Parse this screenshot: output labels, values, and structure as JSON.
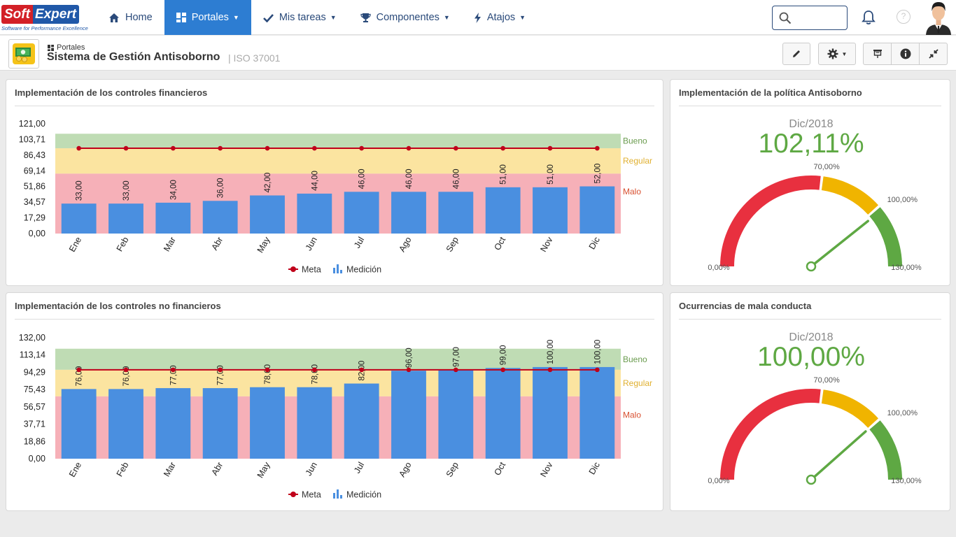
{
  "brand": {
    "part1": "Soft",
    "part2": "Expert",
    "tagline": "Software for Performance Excellence"
  },
  "nav": {
    "home": "Home",
    "portales": "Portales",
    "tareas": "Mis tareas",
    "componentes": "Componentes",
    "atajos": "Atajos"
  },
  "header": {
    "breadcrumb": "Portales",
    "title": "Sistema de Gestión Antisoborno",
    "subtitle": "| ISO 37001"
  },
  "panels": {
    "p1_title": "Implementación de los controles financieros",
    "p2_title": "Implementación de los controles no financieros",
    "g1_title": "Implementación de la política Antisoborno",
    "g2_title": "Ocurrencias de mala conducta"
  },
  "colors": {
    "bar": "#4a8fe0",
    "meta": "#c0001a",
    "band_good": "#bfdcb4",
    "band_regular": "#fbe4a0",
    "band_bad": "#f6b0b8",
    "gauge_red": "#e8303f",
    "gauge_yellow": "#f0b400",
    "gauge_green": "#5ea843",
    "value_green": "#5ea843",
    "nav_active": "#2d7dd2"
  },
  "chart_data": [
    {
      "type": "bar",
      "title": "Implementación de los controles financieros",
      "categories": [
        "Ene",
        "Feb",
        "Mar",
        "Abr",
        "May",
        "Jun",
        "Jul",
        "Ago",
        "Sep",
        "Oct",
        "Nov",
        "Dic"
      ],
      "series": [
        {
          "name": "Medición",
          "values": [
            33,
            33,
            34,
            36,
            42,
            44,
            46,
            46,
            46,
            51,
            51,
            52
          ],
          "labels": [
            "33,00",
            "33,00",
            "34,00",
            "36,00",
            "42,00",
            "44,00",
            "46,00",
            "46,00",
            "46,00",
            "51,00",
            "51,00",
            "52,00"
          ]
        },
        {
          "name": "Meta",
          "type": "line",
          "values": [
            94,
            94,
            94,
            94,
            94,
            94,
            94,
            94,
            94,
            94,
            94,
            94
          ]
        }
      ],
      "yticks": [
        "0,00",
        "17,29",
        "34,57",
        "51,86",
        "69,14",
        "86,43",
        "103,71",
        "121,00"
      ],
      "ylim": [
        0,
        121
      ],
      "bands": [
        {
          "label": "Bueno",
          "from": 94,
          "to": 110
        },
        {
          "label": "Regular",
          "from": 66,
          "to": 94
        },
        {
          "label": "Malo",
          "from": 0,
          "to": 66
        }
      ],
      "legend": [
        "Meta",
        "Medición"
      ]
    },
    {
      "type": "bar",
      "title": "Implementación de los controles no financieros",
      "categories": [
        "Ene",
        "Feb",
        "Mar",
        "Abr",
        "May",
        "Jun",
        "Jul",
        "Ago",
        "Sep",
        "Oct",
        "Nov",
        "Dic"
      ],
      "series": [
        {
          "name": "Medición",
          "values": [
            76,
            76,
            77,
            77,
            78,
            78,
            82,
            96,
            97,
            99,
            100,
            100
          ],
          "labels": [
            "76,00",
            "76,00",
            "77,00",
            "77,00",
            "78,00",
            "78,00",
            "82,00",
            "96,00",
            "97,00",
            "99,00",
            "100,00",
            "100,00"
          ]
        },
        {
          "name": "Meta",
          "type": "line",
          "values": [
            97,
            97,
            97,
            97,
            97,
            97,
            97,
            97,
            97,
            97,
            97,
            97
          ]
        }
      ],
      "yticks": [
        "0,00",
        "18,86",
        "37,71",
        "56,57",
        "75,43",
        "94,29",
        "113,14",
        "132,00"
      ],
      "ylim": [
        0,
        132
      ],
      "bands": [
        {
          "label": "Bueno",
          "from": 97,
          "to": 120
        },
        {
          "label": "Regular",
          "from": 68,
          "to": 97
        },
        {
          "label": "Malo",
          "from": 0,
          "to": 68
        }
      ],
      "legend": [
        "Meta",
        "Medición"
      ]
    },
    {
      "type": "gauge",
      "title": "Implementación de la política Antisoborno",
      "period": "Dic/2018",
      "value_label": "102,11%",
      "value": 102.11,
      "min": 0,
      "max": 130,
      "thresholds": [
        70,
        100
      ],
      "labels": {
        "min": "0,00%",
        "t1": "70,00%",
        "t2": "100,00%",
        "max": "130,00%"
      }
    },
    {
      "type": "gauge",
      "title": "Ocurrencias de mala conducta",
      "period": "Dic/2018",
      "value_label": "100,00%",
      "value": 100,
      "min": 0,
      "max": 130,
      "thresholds": [
        70,
        100
      ],
      "labels": {
        "min": "0,00%",
        "t1": "70,00%",
        "t2": "100,00%",
        "max": "130,00%"
      }
    }
  ]
}
